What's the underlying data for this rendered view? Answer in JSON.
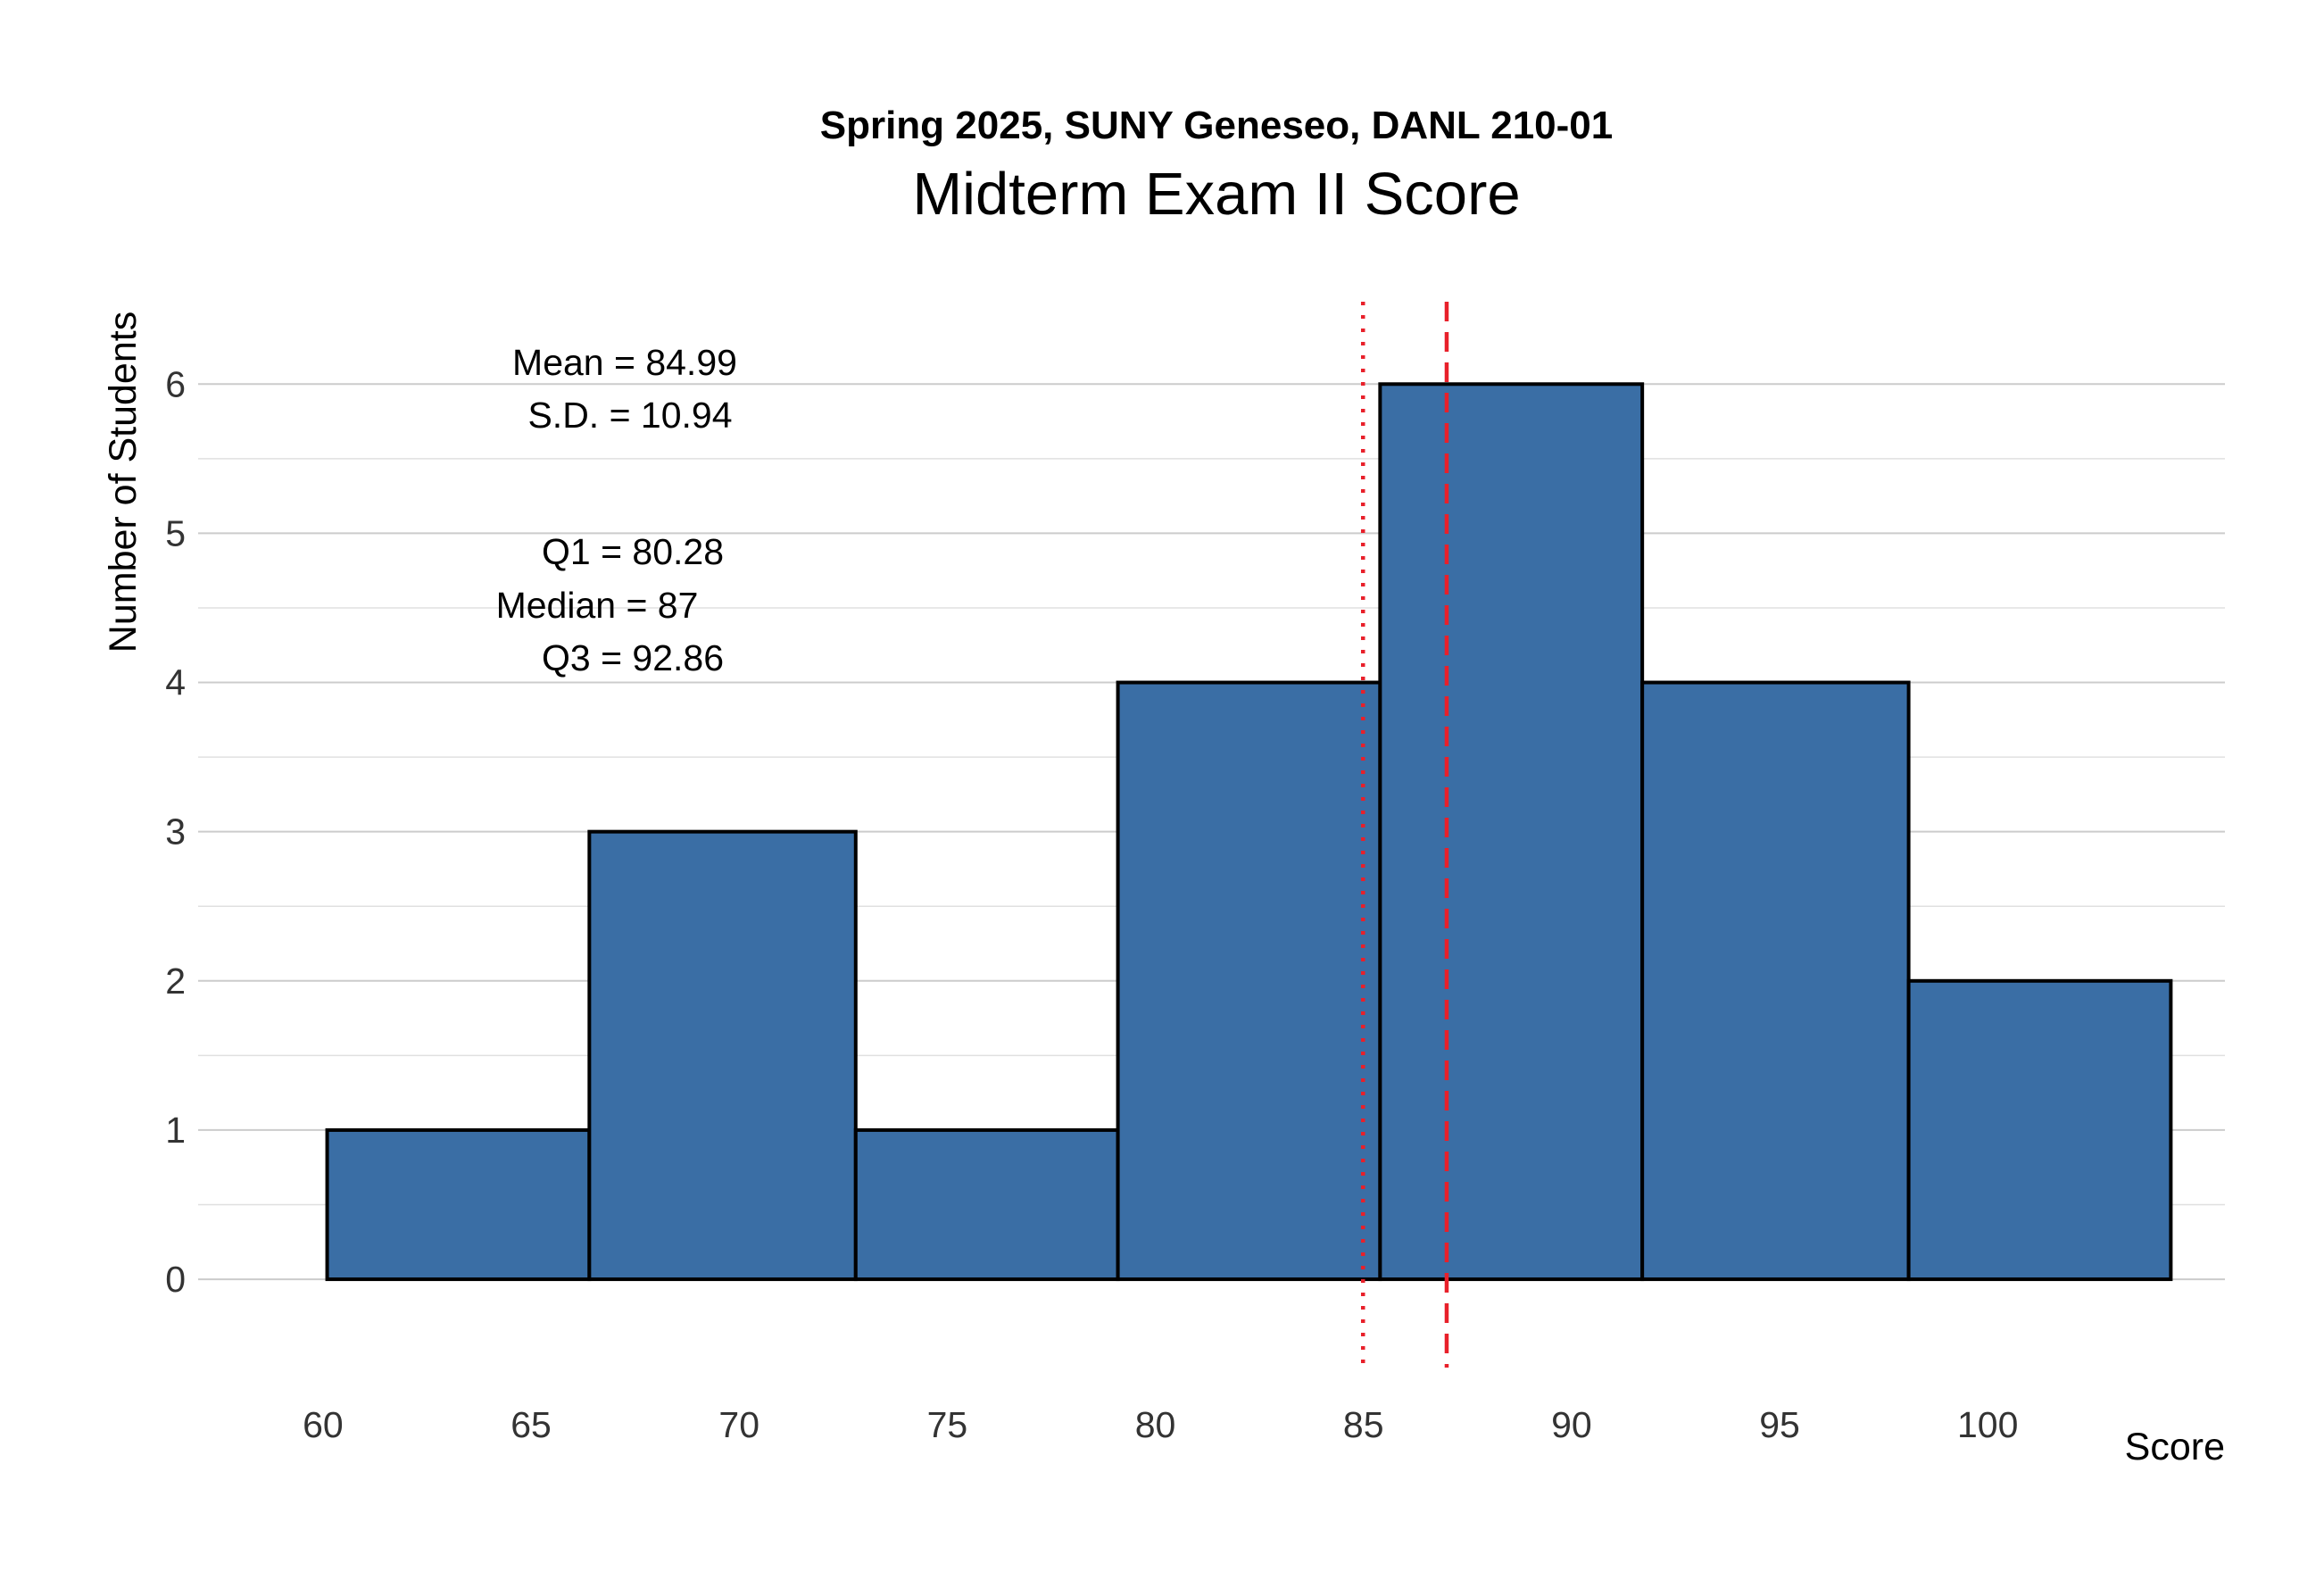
{
  "chart_data": {
    "type": "bar",
    "subtitle": "Spring 2025, SUNY Geneseo, DANL 210-01",
    "title": "Midterm Exam II Score",
    "xlabel": "Score",
    "ylabel": "Number of Students",
    "xlim": [
      57,
      105.7
    ],
    "ylim": [
      -0.58,
      6.6
    ],
    "x_ticks": [
      60,
      65,
      70,
      75,
      80,
      85,
      90,
      95,
      100
    ],
    "y_ticks": [
      0,
      1,
      2,
      3,
      4,
      5,
      6
    ],
    "grid": true,
    "bins": [
      {
        "start": 60.1,
        "end": 66.4,
        "count": 1
      },
      {
        "start": 66.4,
        "end": 72.8,
        "count": 3
      },
      {
        "start": 72.8,
        "end": 79.1,
        "count": 1
      },
      {
        "start": 79.1,
        "end": 85.4,
        "count": 4
      },
      {
        "start": 85.4,
        "end": 91.7,
        "count": 6
      },
      {
        "start": 91.7,
        "end": 98.1,
        "count": 4
      },
      {
        "start": 98.1,
        "end": 104.4,
        "count": 2
      }
    ],
    "bar_color": "#3A6EA5",
    "bar_outline_color": "#000000",
    "reference_lines": [
      {
        "value": 84.99,
        "style": "dotted",
        "color": "#E8202A"
      },
      {
        "value": 87,
        "style": "dashed",
        "color": "#E8202A"
      }
    ],
    "annotations": {
      "mean": "Mean = 84.99",
      "sd": "S.D. = 10.94",
      "q1": "Q1 = 80.28",
      "median": "Median = 87",
      "q3": "Q3 = 92.86"
    }
  }
}
